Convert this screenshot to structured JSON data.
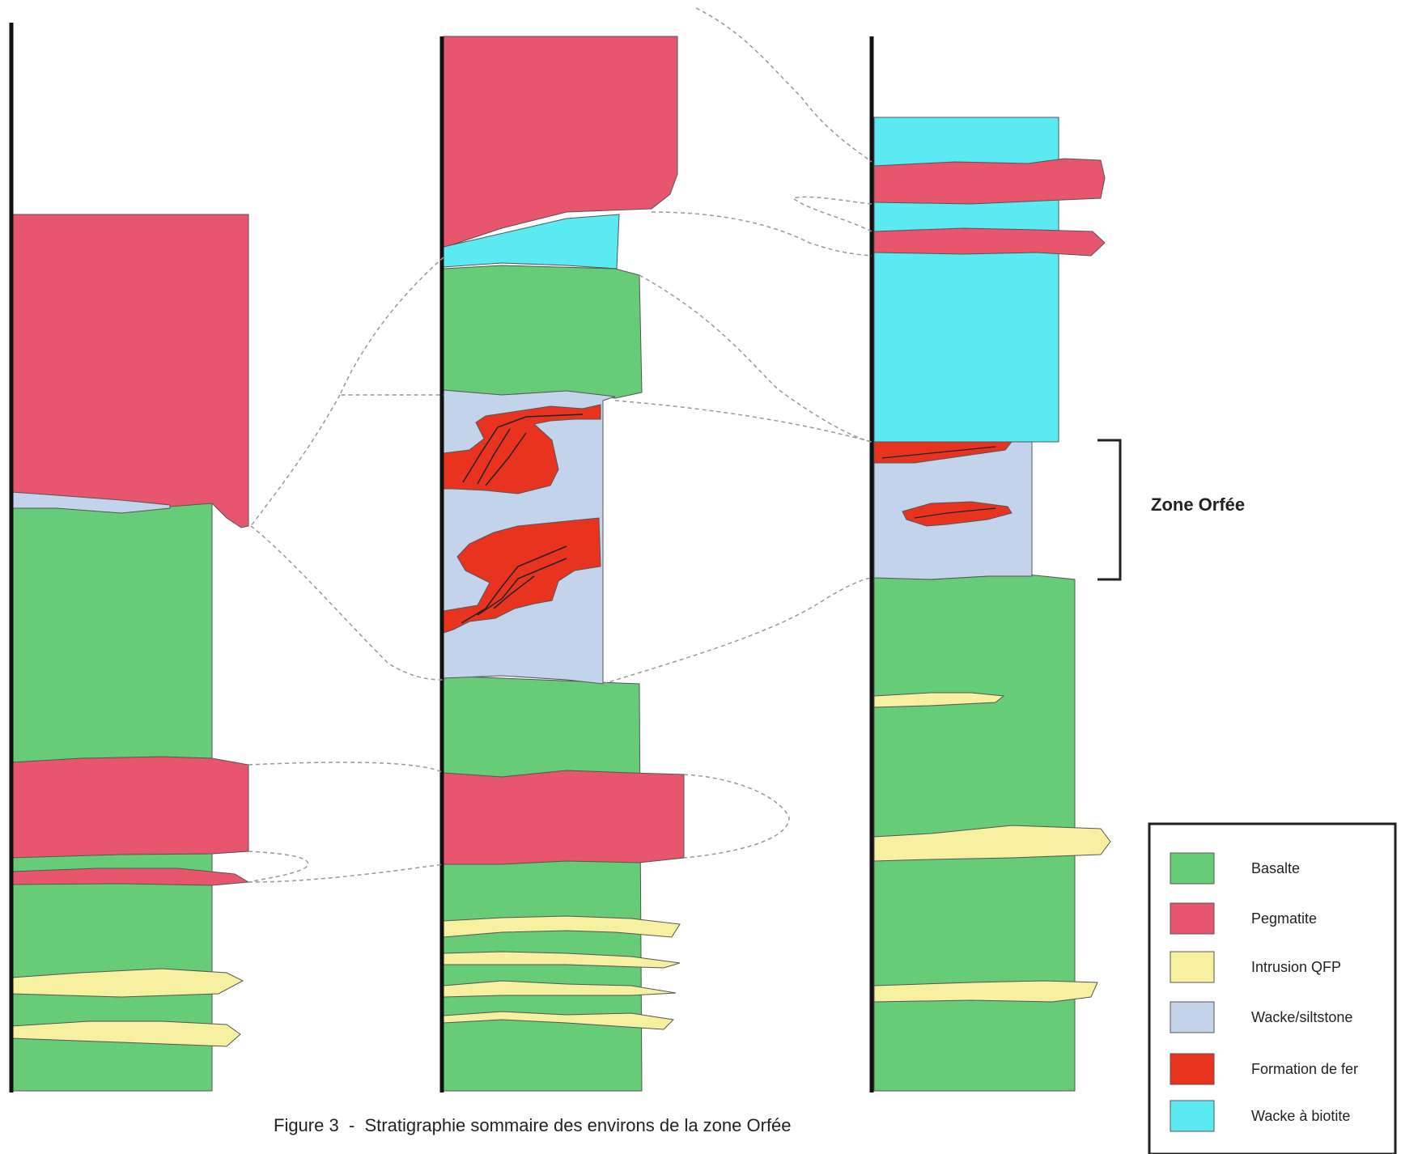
{
  "figure": {
    "caption": "Figure 3  -  Stratigraphie sommaire des environs de la zone Orfée",
    "zone_label": "Zone Orfée"
  },
  "legend": {
    "items": [
      {
        "label": "Basalte",
        "color": "#66cc77"
      },
      {
        "label": "Pegmatite",
        "color": "#e8566e"
      },
      {
        "label": "Intrusion QFP",
        "color": "#f7f0a0"
      },
      {
        "label": "Wacke/siltstone",
        "color": "#c3d3ec"
      },
      {
        "label": "Formation de fer",
        "color": "#e8341f"
      },
      {
        "label": "Wacke à biotite",
        "color": "#5ceaf2"
      }
    ]
  },
  "colors": {
    "basalte": "#66cc77",
    "pegmatite": "#e8566e",
    "qfp": "#f7f0a0",
    "wacke": "#c3d3ec",
    "fer": "#e8341f",
    "biotite": "#5ceaf2",
    "outline": "#555555",
    "correlation_line": "#999999"
  }
}
